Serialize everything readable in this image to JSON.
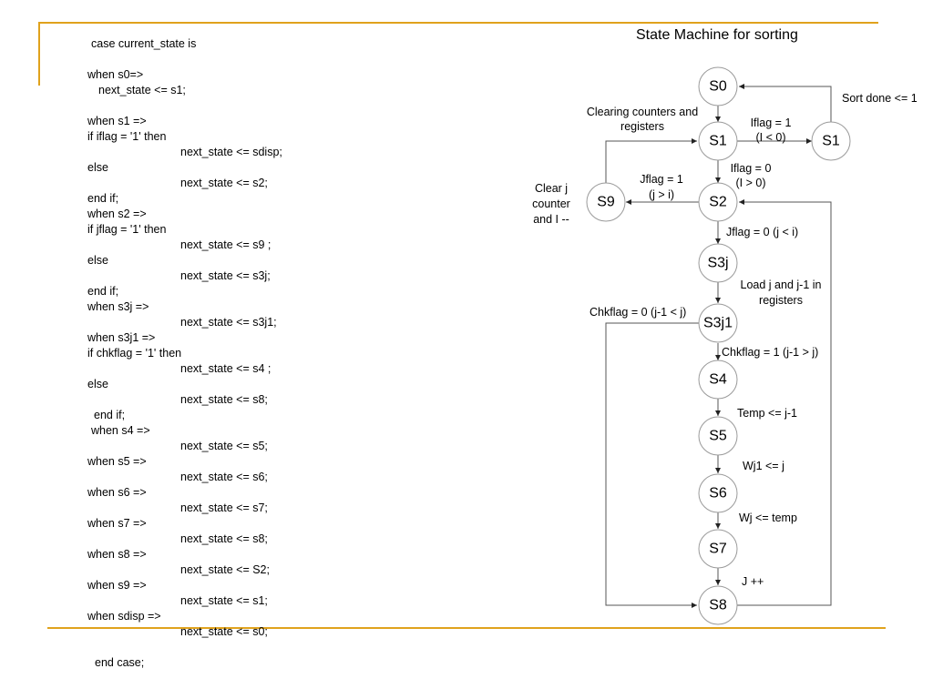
{
  "slide": {
    "title": "State Machine for sorting",
    "accent_color": "#e0a21c"
  },
  "code_lines": [
    "case current_state is",
    "when s0=>",
    "next_state <= s1;",
    "when s1 =>",
    "if iflag = '1' then",
    "next_state <= sdisp;",
    "else",
    "next_state <= s2;",
    "end if;",
    "when s2 =>",
    "if jflag = '1' then",
    "next_state <= s9 ;",
    "else",
    "next_state <= s3j;",
    "end if;",
    "when s3j =>",
    "next_state <= s3j1;",
    "when s3j1 =>",
    "if chkflag = '1' then",
    "next_state <= s4 ;",
    "else",
    "next_state <= s8;",
    "end if;",
    "when s4 =>",
    "next_state <= s5;",
    "when s5 =>",
    "next_state <= s6;",
    "when s6 =>",
    "next_state <= s7;",
    "when s7 =>",
    "next_state <= s8;",
    "when s8 =>",
    "next_state <= S2;",
    "when s9 =>",
    "next_state <= s1;",
    "when sdisp =>",
    "next_state <= s0;",
    "end case;"
  ],
  "diagram": {
    "states": [
      {
        "id": "s0",
        "label": "S0"
      },
      {
        "id": "s1",
        "label": "S1"
      },
      {
        "id": "s1b",
        "label": "S1"
      },
      {
        "id": "s2",
        "label": "S2"
      },
      {
        "id": "s9",
        "label": "S9"
      },
      {
        "id": "s3j",
        "label": "S3j"
      },
      {
        "id": "s3j1",
        "label": "S3j1"
      },
      {
        "id": "s4",
        "label": "S4"
      },
      {
        "id": "s5",
        "label": "S5"
      },
      {
        "id": "s6",
        "label": "S6"
      },
      {
        "id": "s7",
        "label": "S7"
      },
      {
        "id": "s8",
        "label": "S8"
      }
    ],
    "transitions": [
      {
        "from": "s0",
        "to": "s1"
      },
      {
        "from": "s1",
        "to": "s1b"
      },
      {
        "from": "s1b",
        "to": "s0"
      },
      {
        "from": "s1",
        "to": "s2"
      },
      {
        "from": "s2",
        "to": "s9"
      },
      {
        "from": "s9",
        "to": "s1"
      },
      {
        "from": "s2",
        "to": "s3j"
      },
      {
        "from": "s3j",
        "to": "s3j1"
      },
      {
        "from": "s3j1",
        "to": "s4"
      },
      {
        "from": "s3j1",
        "to": "s8"
      },
      {
        "from": "s4",
        "to": "s5"
      },
      {
        "from": "s5",
        "to": "s6"
      },
      {
        "from": "s6",
        "to": "s7"
      },
      {
        "from": "s7",
        "to": "s8"
      },
      {
        "from": "s8",
        "to": "s2"
      }
    ],
    "labels": {
      "sort_done": "Sort done <= 1",
      "clearing_1": "Clearing counters and",
      "clearing_2": "registers",
      "iflag1_1": "Iflag = 1",
      "iflag1_2": "(I < 0)",
      "iflag0_1": "Iflag = 0",
      "iflag0_2": "(I > 0)",
      "jflag1_1": "Jflag = 1",
      "jflag1_2": "(j > i)",
      "clearj_1": "Clear j",
      "clearj_2": "counter",
      "clearj_3": "and I --",
      "jflag0": "Jflag = 0 (j < i)",
      "load_1": "Load j and j-1 in",
      "load_2": "registers",
      "chk0": "Chkflag = 0 (j-1 < j)",
      "chk1": "Chkflag = 1 (j-1 > j)",
      "temp": "Temp <= j-1",
      "wj1": "Wj1 <= j",
      "wj": "Wj <= temp",
      "jpp": "J ++"
    }
  }
}
